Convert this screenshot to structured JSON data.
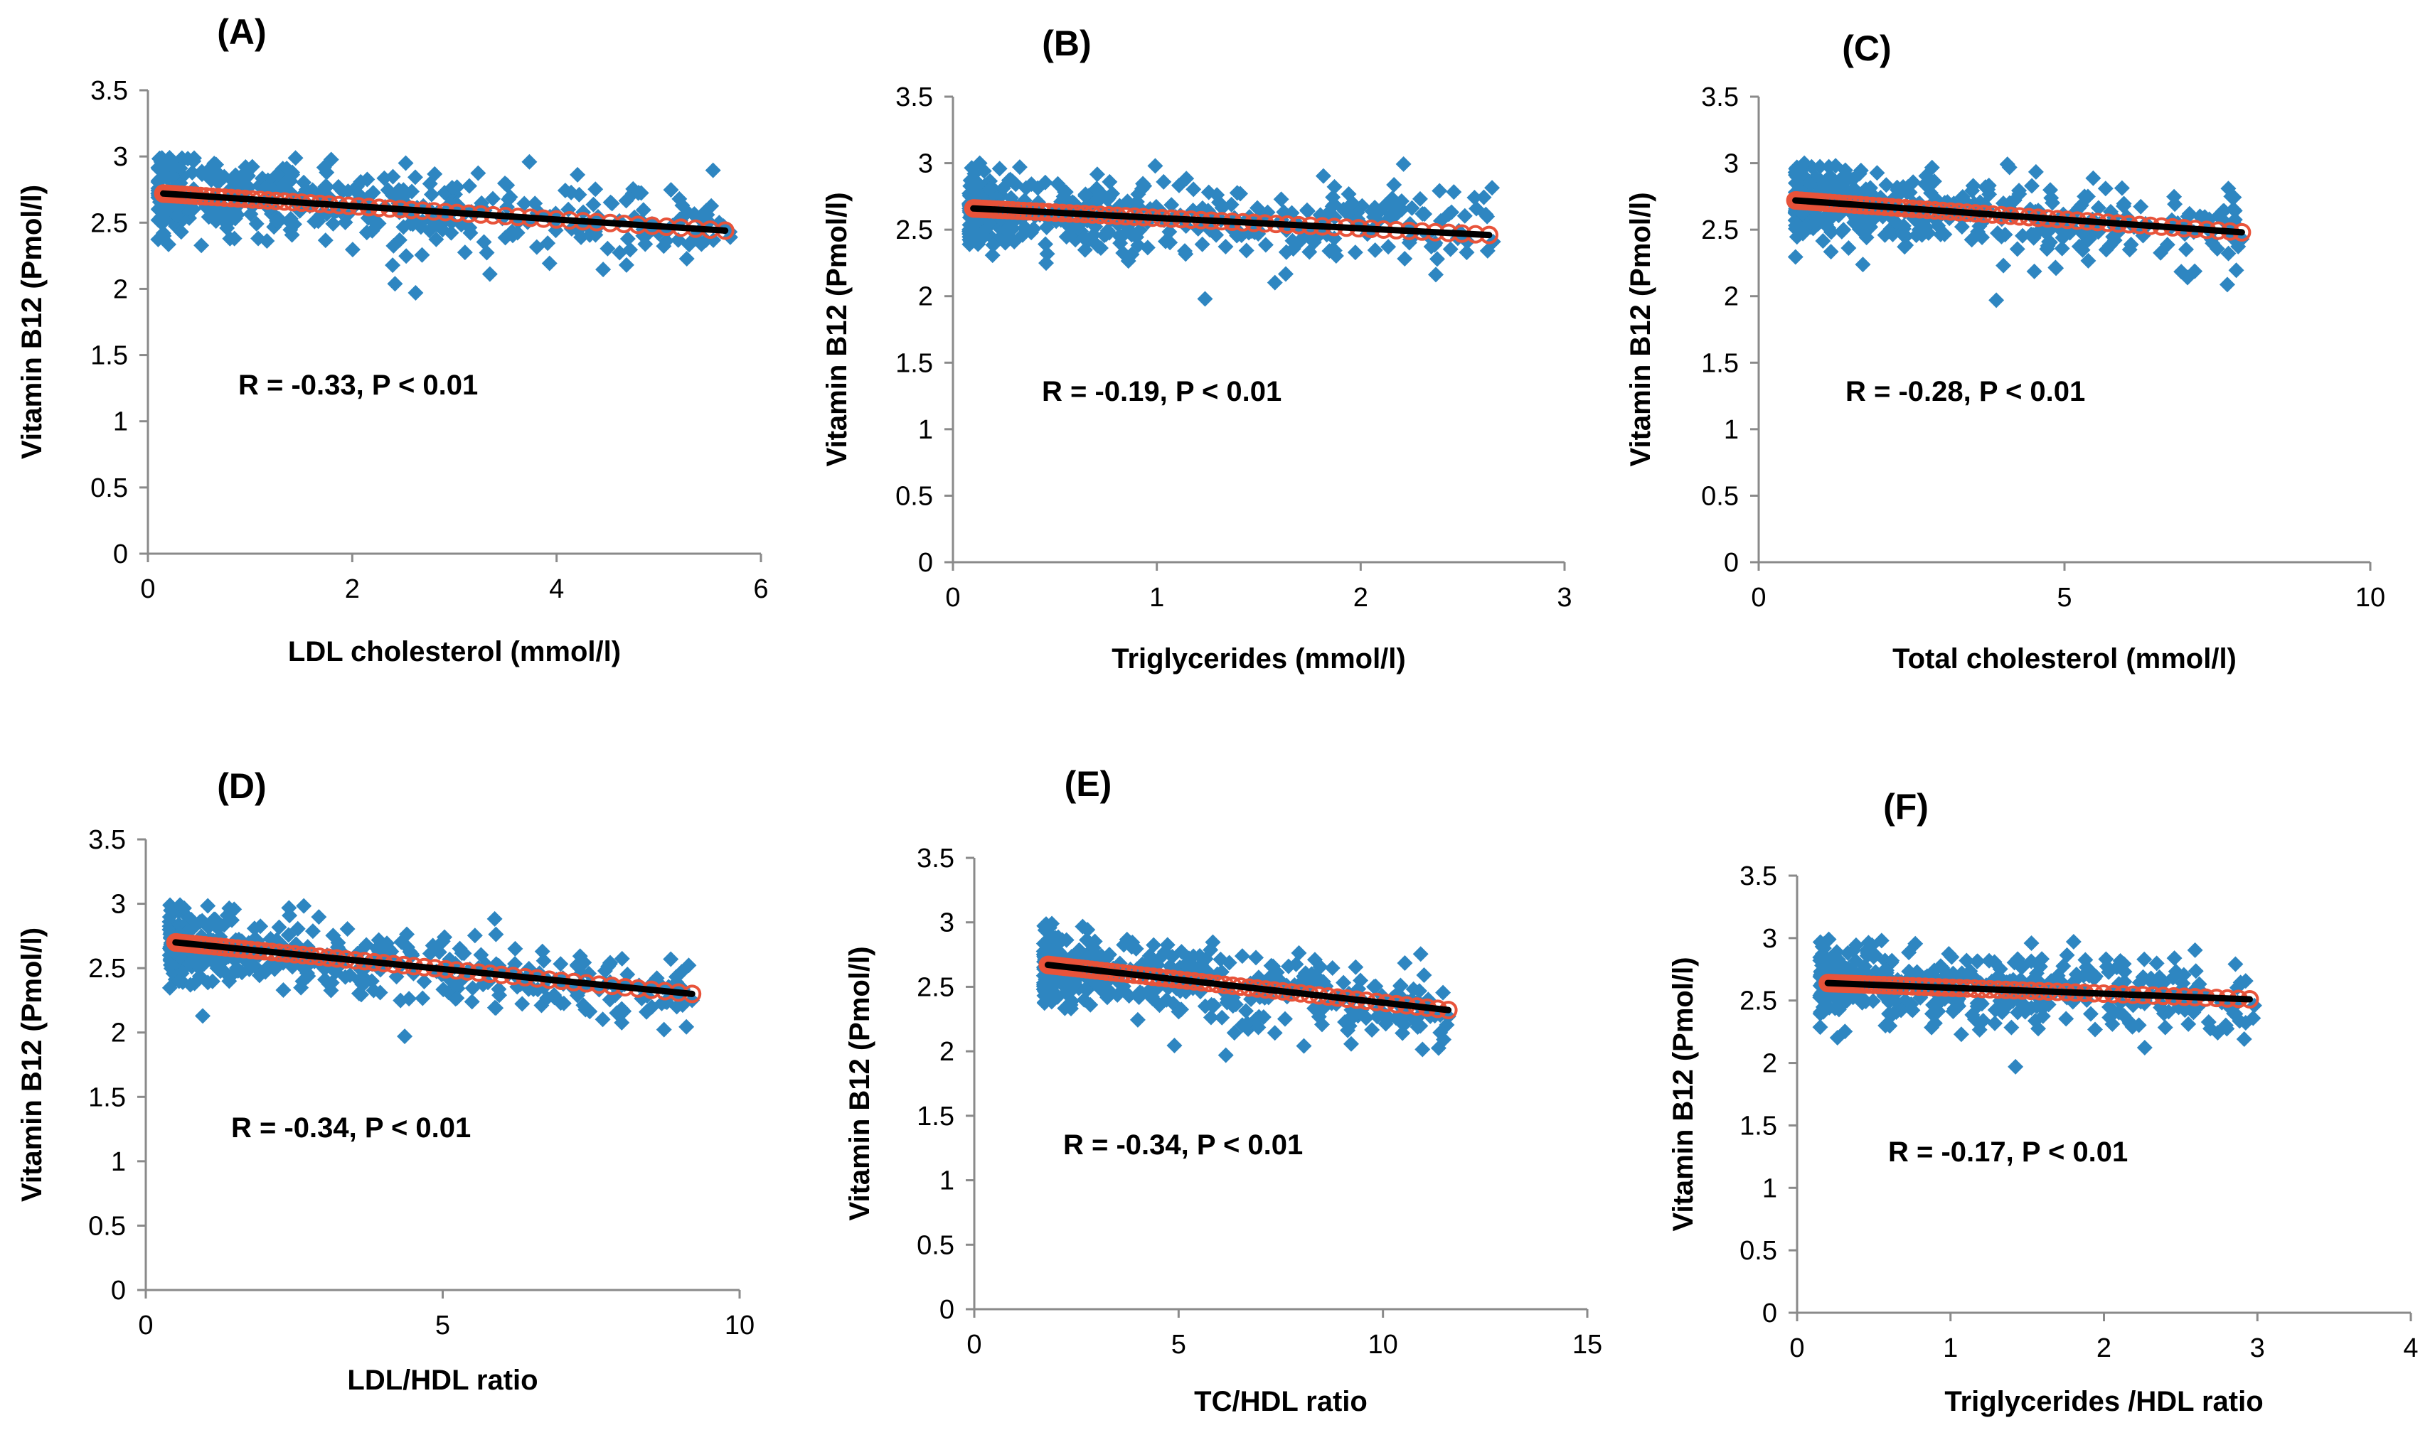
{
  "chart_data": [
    {
      "type": "scatter",
      "panel": "(A)",
      "xlabel": "LDL cholesterol  (mmol/l)",
      "ylabel": "Vitamin B12 (Pmol/l)",
      "annotation": "R = -0.33, P < 0.01",
      "xlim": [
        0,
        6
      ],
      "ylim": [
        0,
        3.5
      ],
      "xticks": [
        0,
        2,
        4,
        6
      ],
      "yticks": [
        0,
        0.5,
        1,
        1.5,
        2,
        2.5,
        3,
        3.5
      ],
      "data_x_range": [
        0.1,
        5.7
      ],
      "data_y_range": [
        1.97,
        2.99
      ],
      "fit": {
        "x": [
          0.15,
          5.65
        ],
        "y": [
          2.72,
          2.44
        ]
      },
      "n_points": 420,
      "seed": 11,
      "colors": {
        "points": "#2e86c1",
        "fit_line": "#000000",
        "fit_markers": "#e8533a"
      }
    },
    {
      "type": "scatter",
      "panel": "(B)",
      "xlabel": "Triglycerides  (mmol/l)",
      "ylabel": "Vitamin B12 (Pmol/l)",
      "annotation": "R = -0.19, P < 0.01",
      "xlim": [
        0,
        3
      ],
      "ylim": [
        0,
        3.5
      ],
      "xticks": [
        0,
        1,
        2,
        3
      ],
      "yticks": [
        0,
        0.5,
        1,
        1.5,
        2,
        2.5,
        3,
        3.5
      ],
      "data_x_range": [
        0.08,
        2.65
      ],
      "data_y_range": [
        1.98,
        3.0
      ],
      "fit": {
        "x": [
          0.1,
          2.63
        ],
        "y": [
          2.66,
          2.46
        ]
      },
      "n_points": 420,
      "seed": 23,
      "colors": {
        "points": "#2e86c1",
        "fit_line": "#000000",
        "fit_markers": "#e8533a"
      }
    },
    {
      "type": "scatter",
      "panel": "(C)",
      "xlabel": "Total cholesterol (mmol/l)",
      "ylabel": "Vitamin B12 (Pmol/l)",
      "annotation": "R = -0.28, P < 0.01",
      "xlim": [
        0,
        10
      ],
      "ylim": [
        0,
        3.5
      ],
      "xticks": [
        0,
        5,
        10
      ],
      "yticks": [
        0,
        0.5,
        1,
        1.5,
        2,
        2.5,
        3,
        3.5
      ],
      "data_x_range": [
        0.6,
        7.9
      ],
      "data_y_range": [
        1.97,
        3.0
      ],
      "fit": {
        "x": [
          0.6,
          7.9
        ],
        "y": [
          2.72,
          2.48
        ]
      },
      "n_points": 420,
      "seed": 37,
      "colors": {
        "points": "#2e86c1",
        "fit_line": "#000000",
        "fit_markers": "#e8533a"
      }
    },
    {
      "type": "scatter",
      "panel": "(D)",
      "xlabel": "LDL/HDL  ratio",
      "ylabel": "Vitamin B12 (Pmol/l)",
      "annotation": "R = -0.34, P < 0.01",
      "xlim": [
        0,
        10
      ],
      "ylim": [
        0,
        3.5
      ],
      "xticks": [
        0,
        5,
        10
      ],
      "yticks": [
        0,
        0.5,
        1,
        1.5,
        2,
        2.5,
        3,
        3.5
      ],
      "data_x_range": [
        0.4,
        9.2
      ],
      "data_y_range": [
        1.97,
        2.99
      ],
      "fit": {
        "x": [
          0.5,
          9.2
        ],
        "y": [
          2.7,
          2.3
        ]
      },
      "n_points": 420,
      "seed": 41,
      "colors": {
        "points": "#2e86c1",
        "fit_line": "#000000",
        "fit_markers": "#e8533a"
      }
    },
    {
      "type": "scatter",
      "panel": "(E)",
      "xlabel": "TC/HDL  ratio",
      "ylabel": "Vitamin B12 (Pmol/l)",
      "annotation": "R = -0.34, P < 0.01",
      "xlim": [
        0,
        15
      ],
      "ylim": [
        0,
        3.5
      ],
      "xticks": [
        0,
        5,
        10,
        15
      ],
      "yticks": [
        0,
        0.5,
        1,
        1.5,
        2,
        2.5,
        3,
        3.5
      ],
      "data_x_range": [
        1.7,
        11.6
      ],
      "data_y_range": [
        1.97,
        2.99
      ],
      "fit": {
        "x": [
          1.8,
          11.6
        ],
        "y": [
          2.67,
          2.32
        ]
      },
      "n_points": 420,
      "seed": 53,
      "colors": {
        "points": "#2e86c1",
        "fit_line": "#000000",
        "fit_markers": "#e8533a"
      }
    },
    {
      "type": "scatter",
      "panel": "(F)",
      "xlabel": "Triglycerides /HDL ratio",
      "ylabel": "Vitamin B12 (Pmol/l)",
      "annotation": "R = -0.17, P < 0.01",
      "xlim": [
        0,
        4
      ],
      "ylim": [
        0,
        3.5
      ],
      "xticks": [
        0,
        1,
        2,
        3,
        4
      ],
      "yticks": [
        0,
        0.5,
        1,
        1.5,
        2,
        2.5,
        3,
        3.5
      ],
      "data_x_range": [
        0.15,
        2.98
      ],
      "data_y_range": [
        1.97,
        2.99
      ],
      "fit": {
        "x": [
          0.2,
          2.95
        ],
        "y": [
          2.64,
          2.51
        ]
      },
      "n_points": 420,
      "seed": 67,
      "colors": {
        "points": "#2e86c1",
        "fit_line": "#000000",
        "fit_markers": "#e8533a"
      }
    }
  ]
}
